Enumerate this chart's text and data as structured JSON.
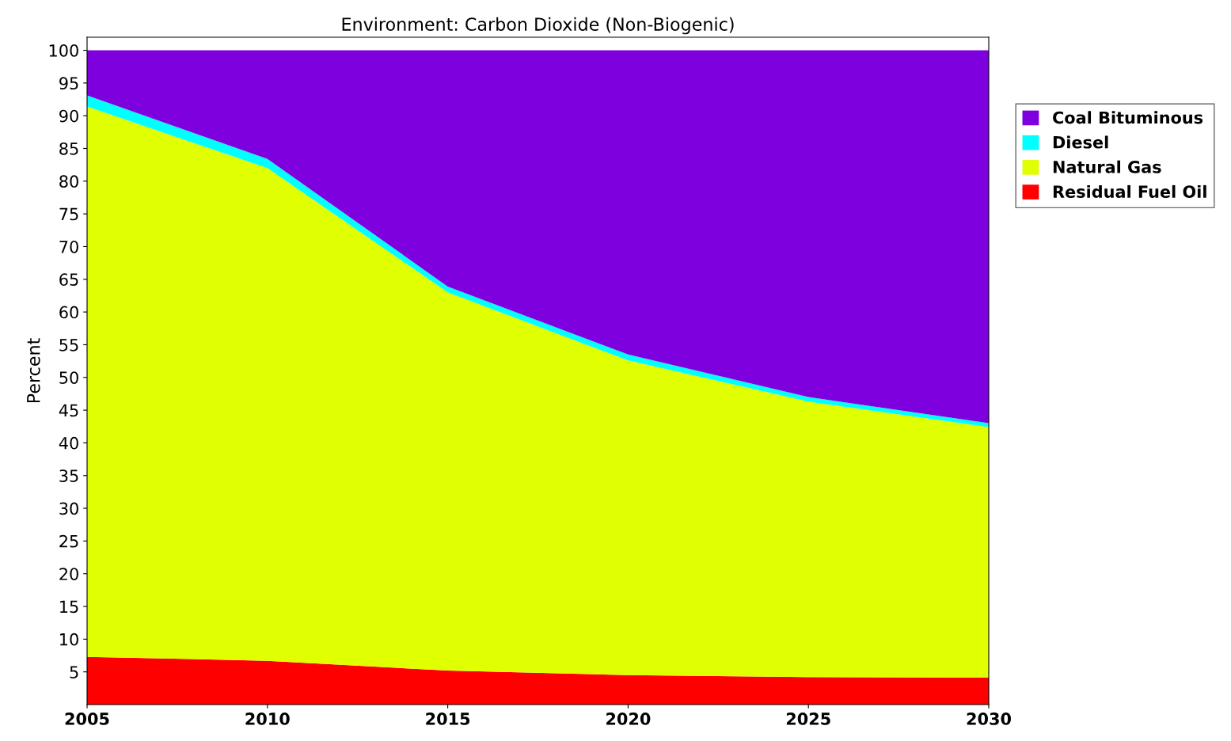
{
  "chart_data": {
    "type": "area",
    "stacked": true,
    "title": "Environment: Carbon Dioxide (Non-Biogenic)",
    "ylabel": "Percent",
    "x": [
      2005,
      2010,
      2015,
      2020,
      2025,
      2030
    ],
    "series": [
      {
        "name": "Residual Fuel Oil",
        "color": "#ff0000",
        "values": [
          7.3,
          6.7,
          5.2,
          4.5,
          4.2,
          4.1
        ]
      },
      {
        "name": "Natural Gas",
        "color": "#e0ff00",
        "values": [
          84.1,
          75.3,
          57.8,
          48.1,
          42.1,
          38.3
        ]
      },
      {
        "name": "Diesel",
        "color": "#00ffff",
        "values": [
          1.7,
          1.4,
          0.9,
          0.9,
          0.7,
          0.6
        ]
      },
      {
        "name": "Coal Bituminous",
        "color": "#7f00df",
        "values": [
          6.9,
          16.6,
          36.1,
          46.5,
          53.0,
          57.0
        ]
      }
    ],
    "xlim": [
      2005,
      2030
    ],
    "xticks": [
      2005,
      2010,
      2015,
      2020,
      2025,
      2030
    ],
    "ylim": [
      0,
      102
    ],
    "yticks": [
      5,
      10,
      15,
      20,
      25,
      30,
      35,
      40,
      45,
      50,
      55,
      60,
      65,
      70,
      75,
      80,
      85,
      90,
      95,
      100
    ],
    "grid": false,
    "legend": "top right"
  }
}
